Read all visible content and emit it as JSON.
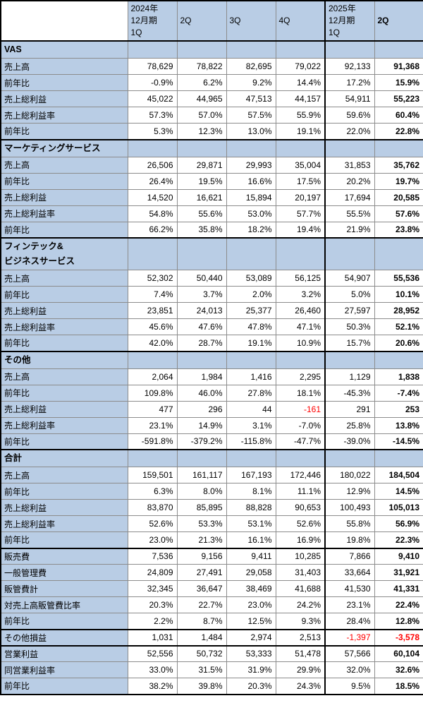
{
  "colors": {
    "header_fill": "#B9CDE5",
    "negative_value": "#FF0000",
    "grid_line": "#8C8C8C",
    "section_border": "#000000"
  },
  "chart_data": {
    "type": "table",
    "columns": [
      {
        "lines": [
          "",
          "",
          ""
        ]
      },
      {
        "lines": [
          "2024年",
          "12月期",
          "1Q"
        ]
      },
      {
        "lines": [
          "",
          "2Q",
          ""
        ]
      },
      {
        "lines": [
          "",
          "3Q",
          ""
        ]
      },
      {
        "lines": [
          "",
          "4Q",
          ""
        ]
      },
      {
        "lines": [
          "2025年",
          "12月期",
          "1Q"
        ],
        "year_start": true
      },
      {
        "lines": [
          "",
          "2Q",
          ""
        ],
        "bold": true
      }
    ],
    "sections": [
      {
        "title_lines": [
          "VAS"
        ],
        "rows": [
          {
            "label": "売上高",
            "values": [
              "78,629",
              "78,822",
              "82,695",
              "79,022",
              "92,133",
              "91,368"
            ]
          },
          {
            "label": "前年比",
            "values": [
              "-0.9%",
              "6.2%",
              "9.2%",
              "14.4%",
              "17.2%",
              "15.9%"
            ]
          },
          {
            "label": "売上総利益",
            "values": [
              "45,022",
              "44,965",
              "47,513",
              "44,157",
              "54,911",
              "55,223"
            ]
          },
          {
            "label": "売上総利益率",
            "values": [
              "57.3%",
              "57.0%",
              "57.5%",
              "55.9%",
              "59.6%",
              "60.4%"
            ]
          },
          {
            "label": "前年比",
            "values": [
              "5.3%",
              "12.3%",
              "13.0%",
              "19.1%",
              "22.0%",
              "22.8%"
            ]
          }
        ]
      },
      {
        "title_lines": [
          "マーケティングサービス"
        ],
        "rows": [
          {
            "label": "売上高",
            "values": [
              "26,506",
              "29,871",
              "29,993",
              "35,004",
              "31,853",
              "35,762"
            ]
          },
          {
            "label": "前年比",
            "values": [
              "26.4%",
              "19.5%",
              "16.6%",
              "17.5%",
              "20.2%",
              "19.7%"
            ]
          },
          {
            "label": "売上総利益",
            "values": [
              "14,520",
              "16,621",
              "15,894",
              "20,197",
              "17,694",
              "20,585"
            ]
          },
          {
            "label": "売上総利益率",
            "values": [
              "54.8%",
              "55.6%",
              "53.0%",
              "57.7%",
              "55.5%",
              "57.6%"
            ]
          },
          {
            "label": "前年比",
            "values": [
              "66.2%",
              "35.8%",
              "18.2%",
              "19.4%",
              "21.9%",
              "23.8%"
            ]
          }
        ]
      },
      {
        "title_lines": [
          "フィンテック&",
          "ビジネスサービス"
        ],
        "rows": [
          {
            "label": "売上高",
            "values": [
              "52,302",
              "50,440",
              "53,089",
              "56,125",
              "54,907",
              "55,536"
            ]
          },
          {
            "label": "前年比",
            "values": [
              "7.4%",
              "3.7%",
              "2.0%",
              "3.2%",
              "5.0%",
              "10.1%"
            ]
          },
          {
            "label": "売上総利益",
            "values": [
              "23,851",
              "24,013",
              "25,377",
              "26,460",
              "27,597",
              "28,952"
            ]
          },
          {
            "label": "売上総利益率",
            "values": [
              "45.6%",
              "47.6%",
              "47.8%",
              "47.1%",
              "50.3%",
              "52.1%"
            ]
          },
          {
            "label": "前年比",
            "values": [
              "42.0%",
              "28.7%",
              "19.1%",
              "10.9%",
              "15.7%",
              "20.6%"
            ]
          }
        ]
      },
      {
        "title_lines": [
          "その他"
        ],
        "rows": [
          {
            "label": "売上高",
            "values": [
              "2,064",
              "1,984",
              "1,416",
              "2,295",
              "1,129",
              "1,838"
            ]
          },
          {
            "label": "前年比",
            "values": [
              "109.8%",
              "46.0%",
              "27.8%",
              "18.1%",
              "-45.3%",
              "-7.4%"
            ]
          },
          {
            "label": "売上総利益",
            "values": [
              "477",
              "296",
              "44",
              "-161",
              "291",
              "253"
            ],
            "red": [
              3
            ]
          },
          {
            "label": "売上総利益率",
            "values": [
              "23.1%",
              "14.9%",
              "3.1%",
              "-7.0%",
              "25.8%",
              "13.8%"
            ]
          },
          {
            "label": "前年比",
            "values": [
              "-591.8%",
              "-379.2%",
              "-115.8%",
              "-47.7%",
              "-39.0%",
              "-14.5%"
            ]
          }
        ]
      },
      {
        "title_lines": [
          "合計"
        ],
        "rows": [
          {
            "label": "売上高",
            "values": [
              "159,501",
              "161,117",
              "167,193",
              "172,446",
              "180,022",
              "184,504"
            ]
          },
          {
            "label": "前年比",
            "values": [
              "6.3%",
              "8.0%",
              "8.1%",
              "11.1%",
              "12.9%",
              "14.5%"
            ]
          },
          {
            "label": "売上総利益",
            "values": [
              "83,870",
              "85,895",
              "88,828",
              "90,653",
              "100,493",
              "105,013"
            ]
          },
          {
            "label": "売上総利益率",
            "values": [
              "52.6%",
              "53.3%",
              "53.1%",
              "52.6%",
              "55.8%",
              "56.9%"
            ]
          },
          {
            "label": "前年比",
            "values": [
              "23.0%",
              "21.3%",
              "16.1%",
              "16.9%",
              "19.8%",
              "22.3%"
            ]
          }
        ]
      },
      {
        "rows": [
          {
            "label": "販売費",
            "values": [
              "7,536",
              "9,156",
              "9,411",
              "10,285",
              "7,866",
              "9,410"
            ]
          },
          {
            "label": "一般管理費",
            "values": [
              "24,809",
              "27,491",
              "29,058",
              "31,403",
              "33,664",
              "31,921"
            ]
          },
          {
            "label": "販管費計",
            "values": [
              "32,345",
              "36,647",
              "38,469",
              "41,688",
              "41,530",
              "41,331"
            ]
          },
          {
            "label": "対売上高販管費比率",
            "values": [
              "20.3%",
              "22.7%",
              "23.0%",
              "24.2%",
              "23.1%",
              "22.4%"
            ]
          },
          {
            "label": "前年比",
            "values": [
              "2.2%",
              "8.7%",
              "12.5%",
              "9.3%",
              "28.4%",
              "12.8%"
            ]
          }
        ]
      },
      {
        "rows": [
          {
            "label": "その他損益",
            "values": [
              "1,031",
              "1,484",
              "2,974",
              "2,513",
              "-1,397",
              "-3,578"
            ],
            "red": [
              4,
              5
            ]
          }
        ]
      },
      {
        "rows": [
          {
            "label": "営業利益",
            "values": [
              "52,556",
              "50,732",
              "53,333",
              "51,478",
              "57,566",
              "60,104"
            ]
          },
          {
            "label": "同営業利益率",
            "values": [
              "33.0%",
              "31.5%",
              "31.9%",
              "29.9%",
              "32.0%",
              "32.6%"
            ]
          },
          {
            "label": "前年比",
            "values": [
              "38.2%",
              "39.8%",
              "20.3%",
              "24.3%",
              "9.5%",
              "18.5%"
            ]
          }
        ]
      }
    ]
  }
}
